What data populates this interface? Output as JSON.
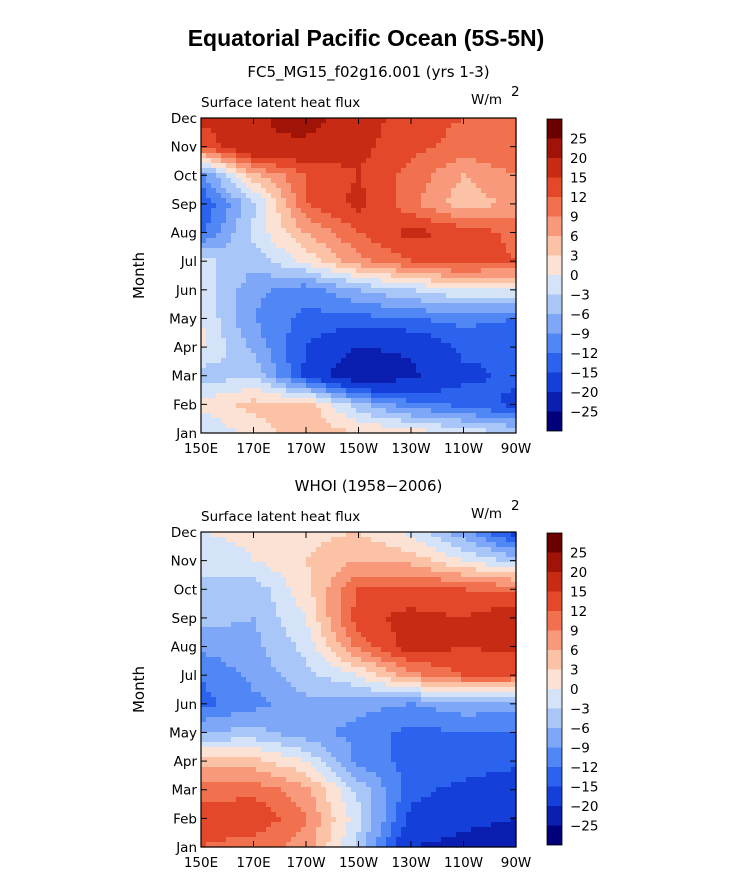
{
  "figure": {
    "title": "Equatorial Pacific Ocean (5S-5N)"
  },
  "chart_data": [
    {
      "type": "heatmap",
      "title": "FC5_MG15_f02g16.001 (yrs 1-3)",
      "field_label": "Surface latent heat flux",
      "units_label": "W/m",
      "units_exp": "2",
      "xlabel": "",
      "ylabel": "Month",
      "x": [
        "150E",
        "170E",
        "170W",
        "150W",
        "130W",
        "110W",
        "90W"
      ],
      "y": [
        "Jan",
        "Feb",
        "Mar",
        "Apr",
        "May",
        "Jun",
        "Jul",
        "Aug",
        "Sep",
        "Oct",
        "Nov",
        "Dec"
      ],
      "colorbar": {
        "levels": [
          -25,
          -20,
          -15,
          -12,
          -9,
          -6,
          -3,
          0,
          3,
          6,
          9,
          12,
          15,
          20,
          25
        ],
        "colors": [
          "#00007a",
          "#0a1fb0",
          "#1440d9",
          "#2b62ee",
          "#5087f4",
          "#7ea8f7",
          "#a9c6f8",
          "#d5e3f8",
          "#fbe2d4",
          "#fbc2a6",
          "#f7997a",
          "#f1714e",
          "#e4482a",
          "#c82b13",
          "#a01408",
          "#6b0000"
        ]
      },
      "z": [
        [
          -3,
          1,
          5,
          3,
          2,
          -1,
          -3
        ],
        [
          1,
          4,
          5,
          -5,
          -11,
          -13,
          -16
        ],
        [
          -5,
          -3,
          -16,
          -25,
          -21,
          -16,
          -14
        ],
        [
          1,
          -7,
          -15,
          -20,
          -19,
          -14,
          -15
        ],
        [
          0,
          -9,
          -13,
          -13,
          -12,
          -11,
          -12
        ],
        [
          -1,
          -8,
          -11,
          -6,
          -3,
          0,
          0
        ],
        [
          -2,
          -5,
          1,
          8,
          12,
          14,
          12
        ],
        [
          -13,
          -2,
          6,
          12,
          16,
          14,
          11
        ],
        [
          -15,
          -4,
          12,
          16,
          10,
          4,
          7
        ],
        [
          -10,
          5,
          12,
          15,
          11,
          6,
          9
        ],
        [
          12,
          20,
          19,
          16,
          13,
          11,
          12
        ],
        [
          16,
          19,
          22,
          17,
          13,
          12,
          11
        ]
      ]
    },
    {
      "type": "heatmap",
      "title": "WHOI (1958−2006)",
      "field_label": "Surface latent heat flux",
      "units_label": "W/m",
      "units_exp": "2",
      "xlabel": "",
      "ylabel": "Month",
      "x": [
        "150E",
        "170E",
        "170W",
        "150W",
        "130W",
        "110W",
        "90W"
      ],
      "y": [
        "Jan",
        "Feb",
        "Mar",
        "Apr",
        "May",
        "Jun",
        "Jul",
        "Aug",
        "Sep",
        "Oct",
        "Nov",
        "Dec"
      ],
      "colorbar": {
        "levels": [
          -25,
          -20,
          -15,
          -12,
          -9,
          -6,
          -3,
          0,
          3,
          6,
          9,
          12,
          15,
          20,
          25
        ],
        "colors": [
          "#00007a",
          "#0a1fb0",
          "#1440d9",
          "#2b62ee",
          "#5087f4",
          "#7ea8f7",
          "#a9c6f8",
          "#d5e3f8",
          "#fbe2d4",
          "#fbc2a6",
          "#f7997a",
          "#f1714e",
          "#e4482a",
          "#c82b13",
          "#a01408",
          "#6b0000"
        ]
      },
      "z": [
        [
          12,
          10,
          8,
          -4,
          -20,
          -22,
          -25
        ],
        [
          14,
          15,
          9,
          -2,
          -16,
          -18,
          -20
        ],
        [
          10,
          11,
          7,
          -4,
          -14,
          -16,
          -18
        ],
        [
          5,
          4,
          0,
          -10,
          -13,
          -13,
          -14
        ],
        [
          -6,
          -5,
          -8,
          -10,
          -13,
          -12,
          -12
        ],
        [
          -13,
          -10,
          -7,
          -8,
          -9,
          -7,
          -8
        ],
        [
          -12,
          -8,
          -4,
          0,
          8,
          12,
          12
        ],
        [
          -8,
          -7,
          -2,
          10,
          17,
          15,
          16
        ],
        [
          -5,
          -6,
          0,
          14,
          16,
          15,
          18
        ],
        [
          -3,
          -5,
          2,
          12,
          13,
          12,
          11
        ],
        [
          -3,
          0,
          3,
          6,
          5,
          0,
          -4
        ],
        [
          0,
          1,
          2,
          3,
          -1,
          -8,
          -17
        ]
      ]
    }
  ]
}
